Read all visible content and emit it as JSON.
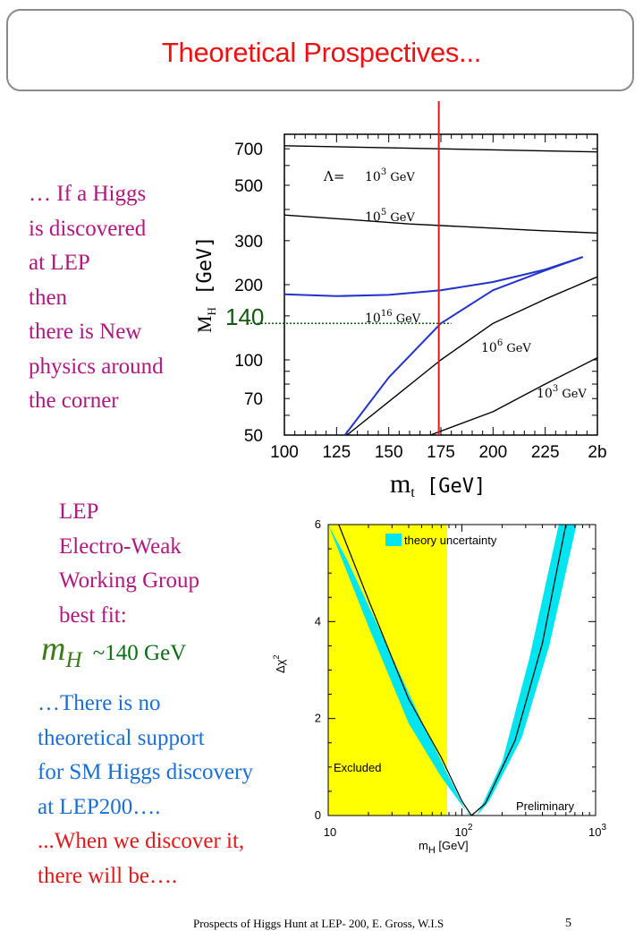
{
  "slide": {
    "title": "Theoretical Prospectives...",
    "intro_lines": [
      "… If a Higgs",
      "is discovered",
      "at LEP",
      "then",
      "there is New",
      "physics around",
      "the corner"
    ],
    "lep_lines": [
      "LEP",
      "Electro-Weak",
      "Working Group",
      "best fit:"
    ],
    "fit": {
      "symbol": "m",
      "subscript": "H",
      "value": " ~140 GeV"
    },
    "blue_lines": [
      "…There is no",
      "theoretical support",
      "for SM Higgs discovery",
      " at LEP200…."
    ],
    "red_lines": [
      "...When we discover it,",
      "there will be…."
    ],
    "footer": "Prospects of Higgs Hunt at LEP-   200, E. Gross, W.I.S",
    "page_number": "5",
    "colors": {
      "title": "#ee1111",
      "magenta": "#b0177f",
      "blue": "#1b6fd4",
      "red": "#e01818",
      "green": "#0c6e14"
    }
  },
  "chart_data": [
    {
      "type": "line",
      "title": "",
      "xlabel": "m_t [GeV]",
      "ylabel": "M_H [GeV]",
      "xlim": [
        100,
        250
      ],
      "ylim": [
        50,
        800
      ],
      "y_scale": "log",
      "x_ticks": [
        "100",
        "125",
        "150",
        "175",
        "200",
        "225",
        "2b"
      ],
      "y_ticks": [
        "700",
        "500",
        "300",
        "200",
        "100",
        "70",
        "50"
      ],
      "y_tick_values": [
        700,
        500,
        300,
        200,
        100,
        70,
        50
      ],
      "highlight_label": "140",
      "highlight_y": 140,
      "vertical_line_x": 174,
      "lambda_symbol": "Λ=",
      "curve_labels": [
        {
          "base": "10",
          "exp": "3",
          "unit": "GeV"
        },
        {
          "base": "10",
          "exp": "5",
          "unit": "GeV"
        },
        {
          "base": "10",
          "exp": "16",
          "unit": "GeV"
        },
        {
          "base": "10",
          "exp": "6",
          "unit": "GeV"
        },
        {
          "base": "10",
          "exp": "3",
          "unit": "GeV"
        }
      ],
      "series": [
        {
          "name": "upper bound Λ=10^3 GeV",
          "color": "#000000",
          "x": [
            100,
            250
          ],
          "y": [
            720,
            680
          ]
        },
        {
          "name": "upper bound Λ=10^5 GeV",
          "color": "#000000",
          "x": [
            100,
            130,
            160,
            190,
            220,
            250
          ],
          "y": [
            380,
            365,
            350,
            340,
            330,
            322
          ]
        },
        {
          "name": "upper bound Λ=10^16 GeV",
          "color": "#2233cc",
          "x": [
            100,
            125,
            150,
            175,
            200,
            225,
            243
          ],
          "y": [
            183,
            180,
            182,
            190,
            205,
            230,
            258
          ]
        },
        {
          "name": "lower bound Λ=10^16 GeV",
          "color": "#2233cc",
          "x": [
            129,
            150,
            175,
            200,
            225,
            243
          ],
          "y": [
            50,
            85,
            140,
            190,
            228,
            258
          ]
        },
        {
          "name": "lower bound Λ=10^6 GeV",
          "color": "#000000",
          "x": [
            130,
            150,
            175,
            200,
            225,
            250
          ],
          "y": [
            50,
            68,
            100,
            140,
            175,
            215
          ]
        },
        {
          "name": "lower bound Λ=10^3 GeV",
          "color": "#000000",
          "x": [
            170,
            200,
            225,
            250
          ],
          "y": [
            50,
            62,
            80,
            102
          ]
        }
      ]
    },
    {
      "type": "line",
      "title": "",
      "xlabel": "m_H [GeV]",
      "ylabel": "Δχ²",
      "x_scale": "log",
      "xlim": [
        10,
        1000
      ],
      "ylim": [
        0,
        6
      ],
      "x_tick_base": "10",
      "x_tick_exps": [
        "",
        "2",
        "3"
      ],
      "y_ticks": [
        "0",
        "2",
        "4",
        "6"
      ],
      "y_tick_values": [
        0,
        2,
        4,
        6
      ],
      "excluded_upper": 77.5,
      "excluded_label": "Excluded",
      "legend_label": "theory uncertainty",
      "annotation": "Preliminary",
      "colors": {
        "excluded": "#ffff00",
        "band": "#00e5ef",
        "curve": "#000000"
      },
      "series": [
        {
          "name": "Δχ² best fit",
          "x": [
            12,
            20,
            40,
            70,
            100,
            118,
            150,
            250,
            400,
            600
          ],
          "y": [
            6,
            4.45,
            2.4,
            1.2,
            0.3,
            0,
            0.25,
            1.55,
            3.55,
            6
          ]
        },
        {
          "name": "band lower edge",
          "x": [
            10,
            20,
            40,
            70,
            110,
            130,
            160,
            280,
            450,
            720
          ],
          "y": [
            6,
            3.9,
            1.9,
            0.8,
            0.05,
            0,
            0.3,
            1.6,
            3.5,
            6
          ]
        },
        {
          "name": "band upper edge",
          "x": [
            10,
            14,
            25,
            50,
            80,
            110,
            130,
            200,
            320,
            530
          ],
          "y": [
            6.0,
            5.25,
            3.75,
            1.95,
            0.8,
            0.03,
            0,
            1.1,
            3.25,
            6
          ]
        }
      ]
    }
  ]
}
